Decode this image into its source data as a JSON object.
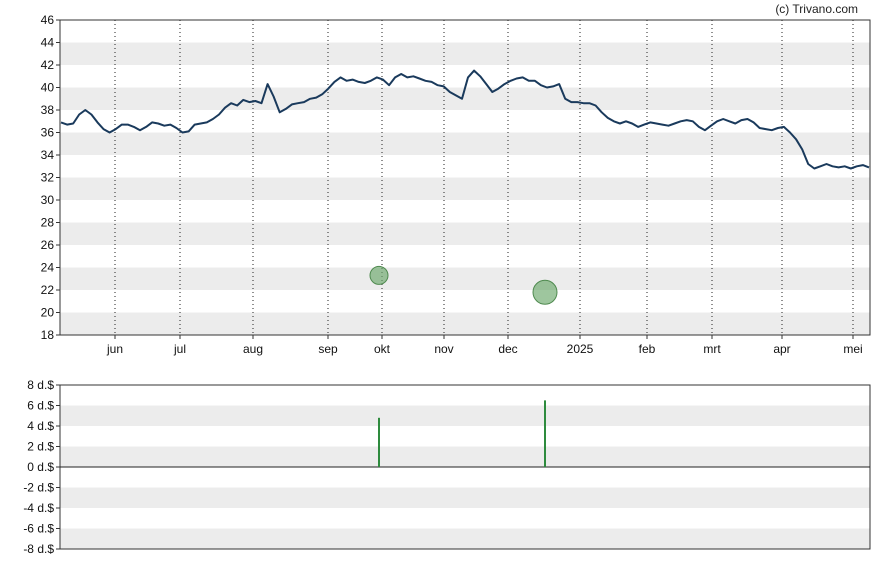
{
  "credit": "(c) Trivano.com",
  "chart_data": [
    {
      "type": "line",
      "title": "",
      "xlabel": "",
      "ylabel": "",
      "ylim": [
        18,
        46
      ],
      "y_ticks": [
        "18",
        "20",
        "22",
        "24",
        "26",
        "28",
        "30",
        "32",
        "34",
        "36",
        "38",
        "40",
        "42",
        "44",
        "46"
      ],
      "grid": "alternating horizontal bands, dotted vertical month lines",
      "x_tick_labels": [
        "jun",
        "jul",
        "aug",
        "sep",
        "okt",
        "nov",
        "dec",
        "2025",
        "feb",
        "mrt",
        "apr",
        "mei"
      ],
      "series": [
        {
          "color": "#1a3a5c",
          "values": [
            36.9,
            36.7,
            36.8,
            37.6,
            38.0,
            37.6,
            36.9,
            36.3,
            36.0,
            36.3,
            36.7,
            36.7,
            36.5,
            36.2,
            36.5,
            36.9,
            36.8,
            36.6,
            36.7,
            36.4,
            36.0,
            36.1,
            36.7,
            36.8,
            36.9,
            37.2,
            37.6,
            38.2,
            38.6,
            38.4,
            38.9,
            38.7,
            38.8,
            38.6,
            40.3,
            39.2,
            37.8,
            38.1,
            38.5,
            38.6,
            38.7,
            39.0,
            39.1,
            39.4,
            39.9,
            40.5,
            40.9,
            40.6,
            40.7,
            40.5,
            40.4,
            40.6,
            40.9,
            40.7,
            40.2,
            40.9,
            41.2,
            40.9,
            41.0,
            40.8,
            40.6,
            40.5,
            40.2,
            40.1,
            39.6,
            39.3,
            39.0,
            40.9,
            41.5,
            41.0,
            40.3,
            39.6,
            39.9,
            40.3,
            40.6,
            40.8,
            40.9,
            40.6,
            40.6,
            40.2,
            40.0,
            40.1,
            40.3,
            39.0,
            38.7,
            38.7,
            38.6,
            38.6,
            38.4,
            37.8,
            37.3,
            37.0,
            36.8,
            37.0,
            36.8,
            36.5,
            36.7,
            36.9,
            36.8,
            36.7,
            36.6,
            36.8,
            37.0,
            37.1,
            37.0,
            36.5,
            36.2,
            36.6,
            37.0,
            37.2,
            37.0,
            36.8,
            37.1,
            37.2,
            36.9,
            36.4,
            36.3,
            36.2,
            36.4,
            36.5,
            36.0,
            35.4,
            34.5,
            33.2,
            32.8,
            33.0,
            33.2,
            33.0,
            32.9,
            33.0,
            32.8,
            33.0,
            33.1,
            32.9
          ]
        }
      ],
      "markers": [
        {
          "x_label": "okt",
          "value": 23.3,
          "size": "small",
          "color": "#6aa86a"
        },
        {
          "x_label": "dec",
          "value": 21.8,
          "size": "large",
          "color": "#6aa86a"
        }
      ]
    },
    {
      "type": "bar",
      "title": "",
      "ylim": [
        -8,
        8
      ],
      "y_ticks": [
        "8 d.$",
        "6 d.$",
        "4 d.$",
        "2 d.$",
        "0 d.$",
        "-2 d.$",
        "-4 d.$",
        "-6 d.$",
        "-8 d.$"
      ],
      "grid": "alternating horizontal bands",
      "bars": [
        {
          "x_label": "okt",
          "value": 4.8,
          "color": "#2e8b3e"
        },
        {
          "x_label": "dec",
          "value": 6.5,
          "color": "#2e8b3e"
        }
      ]
    }
  ]
}
